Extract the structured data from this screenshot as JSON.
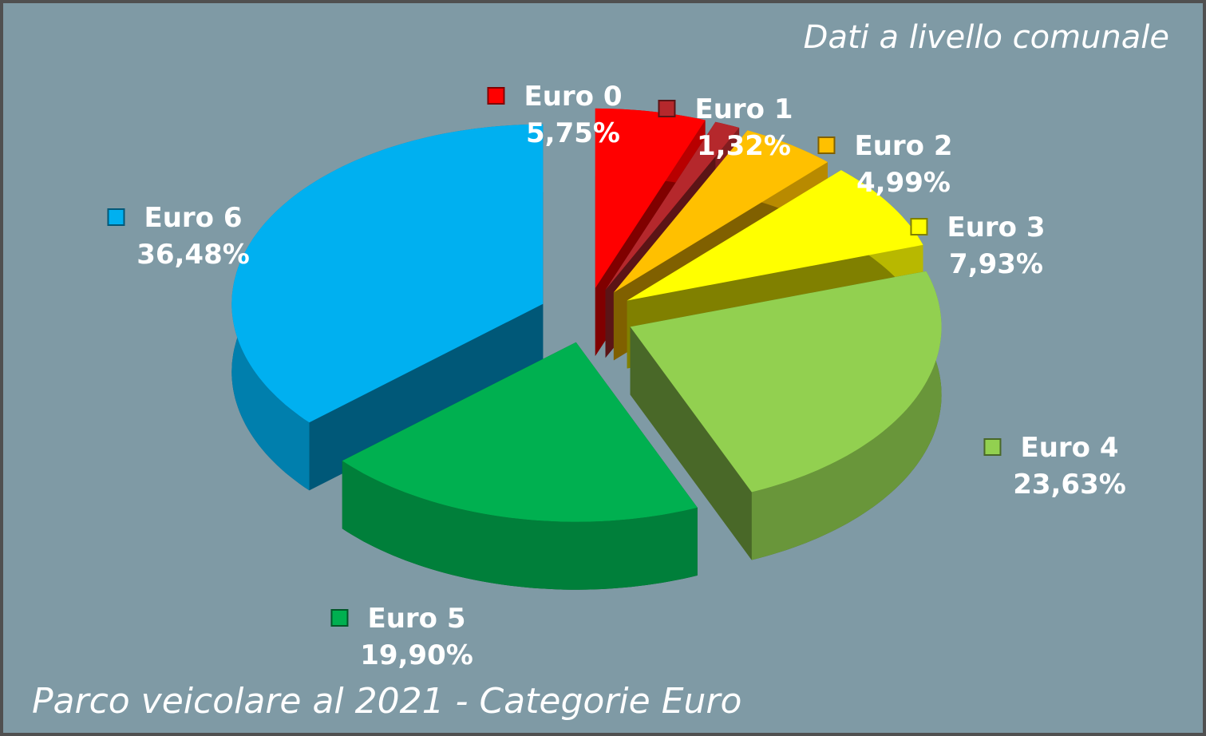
{
  "chart_data": {
    "type": "pie3d",
    "title": "Parco veicolare al 2021 - Categorie Euro",
    "subtitle": "Dati a livello comunale",
    "categories": [
      "Euro 0",
      "Euro 1",
      "Euro 2",
      "Euro 3",
      "Euro 4",
      "Euro 5",
      "Euro 6"
    ],
    "values": [
      5.75,
      1.32,
      4.99,
      7.93,
      23.63,
      19.9,
      36.48
    ],
    "value_labels": [
      "5,75%",
      "1,32%",
      "4,99%",
      "7,93%",
      "23,63%",
      "19,90%",
      "36,48%"
    ],
    "colors": [
      "#ff0000",
      "#b5282c",
      "#ffc000",
      "#ffff00",
      "#92d050",
      "#00b050",
      "#00b0f0"
    ]
  }
}
